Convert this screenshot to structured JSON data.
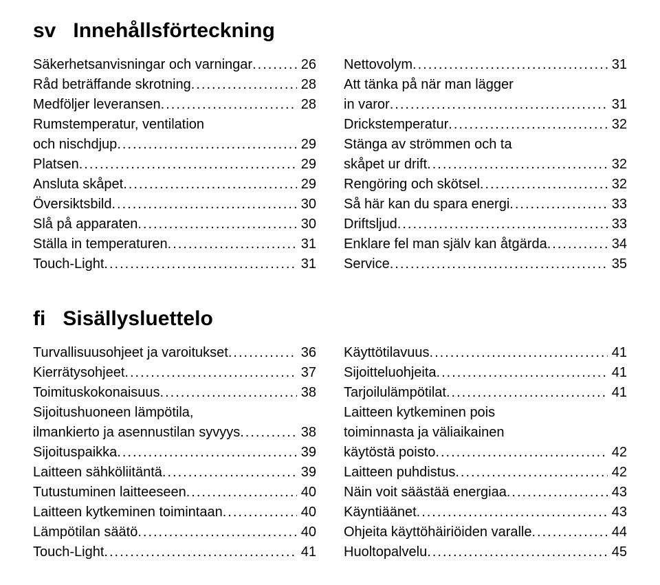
{
  "sections": [
    {
      "langcode": "sv",
      "title": "Innehållsförteckning",
      "left": [
        {
          "type": "line",
          "label": "Säkerhetsanvisningar och varningar",
          "page": "26"
        },
        {
          "type": "line",
          "label": "Råd beträffande skrotning",
          "page": "28"
        },
        {
          "type": "line",
          "label": "Medföljer leveransen",
          "page": "28"
        },
        {
          "type": "wrap",
          "first": "Rumstemperatur, ventilation",
          "second": "och nischdjup",
          "page": "29"
        },
        {
          "type": "line",
          "label": "Platsen",
          "page": "29"
        },
        {
          "type": "line",
          "label": "Ansluta skåpet",
          "page": "29"
        },
        {
          "type": "line",
          "label": "Översiktsbild",
          "page": "30"
        },
        {
          "type": "line",
          "label": "Slå på apparaten",
          "page": "30"
        },
        {
          "type": "line",
          "label": "Ställa in temperaturen",
          "page": "31"
        },
        {
          "type": "line",
          "label": "Touch-Light",
          "page": "31"
        }
      ],
      "right": [
        {
          "type": "line",
          "label": "Nettovolym",
          "page": "31"
        },
        {
          "type": "wrap",
          "first": "Att tänka på när man lägger",
          "second": "in varor",
          "page": "31"
        },
        {
          "type": "line",
          "label": "Drickstemperatur",
          "page": "32"
        },
        {
          "type": "wrap",
          "first": "Stänga av strömmen och ta",
          "second": "skåpet ur drift",
          "page": "32"
        },
        {
          "type": "line",
          "label": "Rengöring och skötsel",
          "page": "32"
        },
        {
          "type": "line",
          "label": "Så här kan du spara energi",
          "page": "33"
        },
        {
          "type": "line",
          "label": "Driftsljud",
          "page": "33"
        },
        {
          "type": "line",
          "label": "Enklare fel man själv kan åtgärda",
          "page": "34"
        },
        {
          "type": "line",
          "label": "Service",
          "page": "35"
        }
      ]
    },
    {
      "langcode": "fi",
      "title": "Sisällysluettelo",
      "left": [
        {
          "type": "line",
          "label": "Turvallisuusohjeet ja varoitukset",
          "page": "36"
        },
        {
          "type": "line",
          "label": "Kierrätysohjeet",
          "page": "37"
        },
        {
          "type": "line",
          "label": "Toimituskokonaisuus",
          "page": "38"
        },
        {
          "type": "wrap",
          "first": "Sijoitushuoneen lämpötila,",
          "second": "ilmankierto ja asennustilan syvyys",
          "page": "38"
        },
        {
          "type": "line",
          "label": "Sijoituspaikka",
          "page": "39"
        },
        {
          "type": "line",
          "label": "Laitteen sähköliitäntä",
          "page": "39"
        },
        {
          "type": "line",
          "label": "Tutustuminen laitteeseen",
          "page": "40"
        },
        {
          "type": "line",
          "label": "Laitteen kytkeminen toimintaan",
          "page": "40"
        },
        {
          "type": "line",
          "label": "Lämpötilan säätö",
          "page": "40"
        },
        {
          "type": "line",
          "label": "Touch-Light",
          "page": "41"
        }
      ],
      "right": [
        {
          "type": "line",
          "label": "Käyttötilavuus",
          "page": "41"
        },
        {
          "type": "line",
          "label": "Sijoitteluohjeita",
          "page": "41"
        },
        {
          "type": "line",
          "label": "Tarjoilulämpötilat",
          "page": "41"
        },
        {
          "type": "wrap3",
          "first": "Laitteen kytkeminen pois",
          "second": "toiminnasta ja väliaikainen",
          "third": "käytöstä poisto",
          "page": "42"
        },
        {
          "type": "line",
          "label": "Laitteen puhdistus",
          "page": "42"
        },
        {
          "type": "line",
          "label": "Näin voit säästää energiaa",
          "page": "43"
        },
        {
          "type": "line",
          "label": "Käyntiäänet",
          "page": "43"
        },
        {
          "type": "line",
          "label": "Ohjeita käyttöhäiriöiden varalle",
          "page": "44"
        },
        {
          "type": "line",
          "label": "Huoltopalvelu",
          "page": "45"
        }
      ]
    }
  ]
}
